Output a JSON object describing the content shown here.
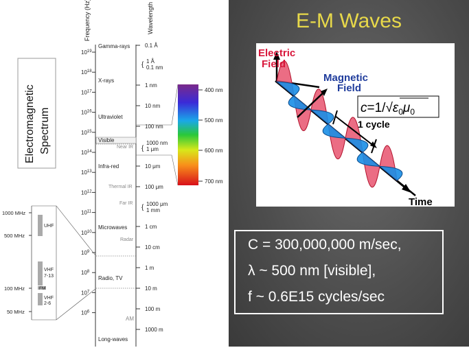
{
  "spectrum": {
    "title_line1": "Electromagnetic",
    "title_line2": "Spectrum",
    "freq_header": "Frequency (Hz)",
    "wave_header": "Wavelength",
    "freq_ticks": [
      {
        "base": "10",
        "exp": "19"
      },
      {
        "base": "10",
        "exp": "18"
      },
      {
        "base": "10",
        "exp": "17"
      },
      {
        "base": "10",
        "exp": "16"
      },
      {
        "base": "10",
        "exp": "15"
      },
      {
        "base": "10",
        "exp": "14"
      },
      {
        "base": "10",
        "exp": "13"
      },
      {
        "base": "10",
        "exp": "12"
      },
      {
        "base": "10",
        "exp": "11"
      },
      {
        "base": "10",
        "exp": "10"
      },
      {
        "base": "10",
        "exp": "9"
      },
      {
        "base": "10",
        "exp": "8"
      },
      {
        "base": "10",
        "exp": "7"
      },
      {
        "base": "10",
        "exp": "6"
      }
    ],
    "bands": [
      "Gamma-rays",
      "X-rays",
      "Ultraviolet",
      "Visible",
      "Near IR",
      "Infra-red",
      "Thermal IR",
      "Far IR",
      "Microwaves",
      "Radar",
      "Radio, TV",
      "AM",
      "Long-waves"
    ],
    "wavelengths": [
      "0.1 Å",
      "1 Å",
      "0.1 nm",
      "1 nm",
      "10 nm",
      "100 nm",
      "1000 nm",
      "1 μm",
      "10 μm",
      "100 μm",
      "1000 μm",
      "1 mm",
      "1 cm",
      "10 cm",
      "1 m",
      "10 m",
      "100 m",
      "1000 m"
    ],
    "visible_labels": [
      "400 nm",
      "500 nm",
      "600 nm",
      "700 nm"
    ],
    "radio_freqs": [
      "1000 MHz",
      "500 MHz",
      "100 MHz",
      "50 MHz"
    ],
    "radio_bands": [
      "UHF",
      "VHF",
      "7-13",
      "FM",
      "VHF",
      "2-6"
    ]
  },
  "slide": {
    "title": "E-M Waves",
    "wave_labels": {
      "electric_1": "Electric",
      "electric_2": "Field",
      "magnetic_1": "Magnetic",
      "magnetic_2": "Field",
      "cycle": "1 cycle",
      "time": "Time"
    },
    "formula": {
      "c": "c",
      "eq": "=1/√",
      "eps": "ε",
      "mu": "μ",
      "sub": "0"
    },
    "info": [
      "C = 300,000,000 m/sec,",
      "λ ~ 500 nm [visible],",
      "f ~  0.6E15 cycles/sec"
    ]
  },
  "colors": {
    "electric": "#e8546e",
    "magnetic": "#1a8ee6",
    "title": "#e8d94a",
    "electric_label": "#d8163a",
    "magnetic_label": "#1f3c9c"
  }
}
